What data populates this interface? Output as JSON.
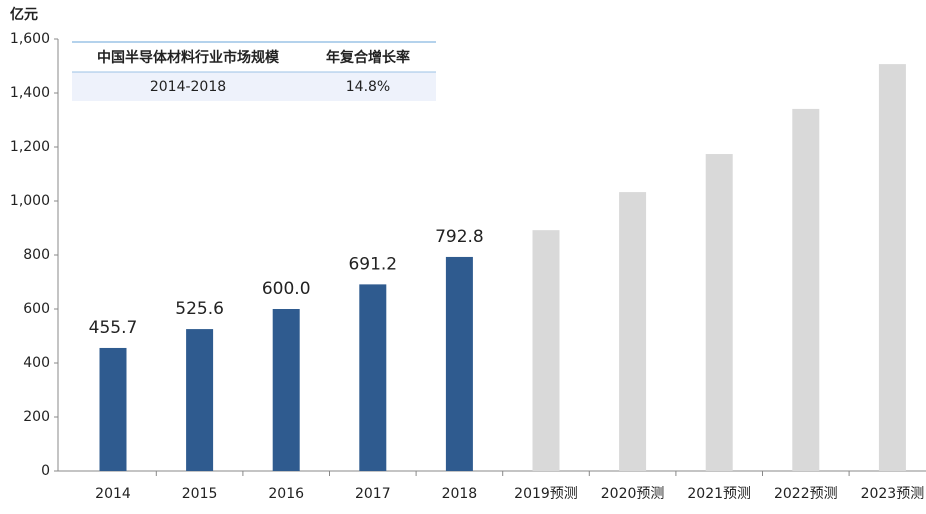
{
  "chart_data": {
    "type": "bar",
    "y_unit": "亿元",
    "categories": [
      "2014",
      "2015",
      "2016",
      "2017",
      "2018",
      "2019预测",
      "2020预测",
      "2021预测",
      "2022预测",
      "2023预测"
    ],
    "values": [
      455.7,
      525.6,
      600.0,
      691.2,
      792.8,
      892,
      1033,
      1174,
      1341,
      1507
    ],
    "value_labels": [
      "455.7",
      "525.6",
      "600.0",
      "691.2",
      "792.8",
      null,
      null,
      null,
      null,
      null
    ],
    "colors": [
      "#2f5b8f",
      "#2f5b8f",
      "#2f5b8f",
      "#2f5b8f",
      "#2f5b8f",
      "#d9d9d9",
      "#d9d9d9",
      "#d9d9d9",
      "#d9d9d9",
      "#d9d9d9"
    ],
    "ylim": [
      0,
      1600
    ],
    "yticks": [
      0,
      200,
      400,
      600,
      800,
      {
        "value": 1000,
        "label": "1,000"
      },
      {
        "value": 1200,
        "label": "1,200"
      },
      {
        "value": 1400,
        "label": "1,400"
      },
      {
        "value": 1600,
        "label": "1,600"
      }
    ],
    "grid": false,
    "inset_table": {
      "header": [
        "中国半导体材料行业市场规模",
        "年复合增长率"
      ],
      "rows": [
        [
          "2014-2018",
          "14.8%"
        ]
      ]
    }
  }
}
